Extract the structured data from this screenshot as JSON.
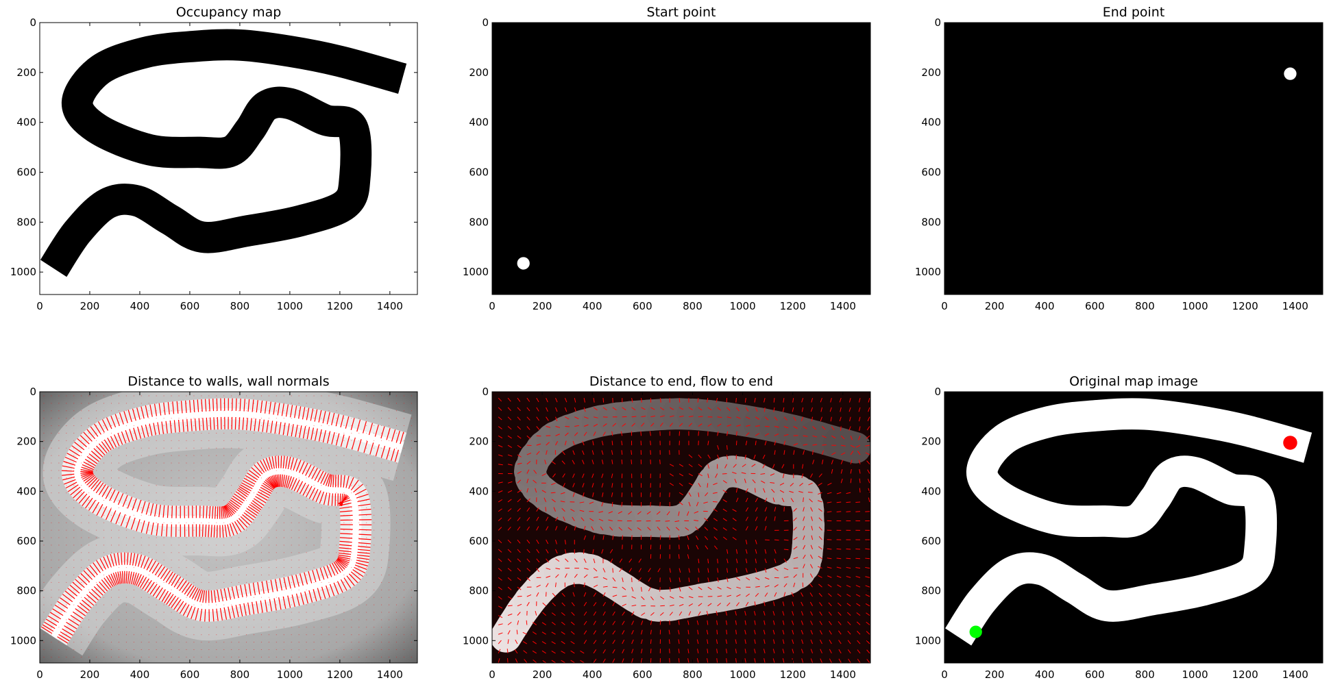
{
  "chart_data": [
    {
      "type": "heatmap",
      "title": "Occupancy map",
      "panel": "occupancy",
      "xlim": [
        0,
        1510
      ],
      "ylim": [
        1090,
        0
      ],
      "x_ticks": [
        0,
        200,
        400,
        600,
        800,
        1000,
        1200,
        1400
      ],
      "y_ticks": [
        0,
        200,
        400,
        600,
        800,
        1000
      ],
      "background": "#ffffff",
      "track_color": "#000000",
      "track_width": 125,
      "track_path": [
        [
          55,
          985
        ],
        [
          150,
          840
        ],
        [
          270,
          725
        ],
        [
          390,
          715
        ],
        [
          520,
          790
        ],
        [
          650,
          860
        ],
        [
          830,
          835
        ],
        [
          1040,
          795
        ],
        [
          1220,
          730
        ],
        [
          1260,
          620
        ],
        [
          1250,
          420
        ],
        [
          1140,
          390
        ],
        [
          1000,
          325
        ],
        [
          905,
          335
        ],
        [
          840,
          430
        ],
        [
          765,
          515
        ],
        [
          640,
          520
        ],
        [
          440,
          510
        ],
        [
          230,
          425
        ],
        [
          150,
          320
        ],
        [
          240,
          190
        ],
        [
          420,
          120
        ],
        [
          620,
          95
        ],
        [
          800,
          90
        ],
        [
          1000,
          115
        ],
        [
          1200,
          155
        ],
        [
          1450,
          225
        ]
      ]
    },
    {
      "type": "heatmap",
      "title": "Start point",
      "panel": "start",
      "xlim": [
        0,
        1510
      ],
      "ylim": [
        1090,
        0
      ],
      "x_ticks": [
        0,
        200,
        400,
        600,
        800,
        1000,
        1200,
        1400
      ],
      "y_ticks": [
        0,
        200,
        400,
        600,
        800,
        1000
      ],
      "background": "#000000",
      "point": {
        "x": 125,
        "y": 965,
        "radius": 25,
        "color": "#ffffff"
      }
    },
    {
      "type": "heatmap",
      "title": "End point",
      "panel": "end",
      "xlim": [
        0,
        1510
      ],
      "ylim": [
        1090,
        0
      ],
      "x_ticks": [
        0,
        200,
        400,
        600,
        800,
        1000,
        1200,
        1400
      ],
      "y_ticks": [
        0,
        200,
        400,
        600,
        800,
        1000
      ],
      "background": "#000000",
      "point": {
        "x": 1380,
        "y": 205,
        "radius": 25,
        "color": "#ffffff"
      }
    },
    {
      "type": "heatmap",
      "title": "Distance to walls, wall normals",
      "panel": "walls",
      "xlim": [
        0,
        1510
      ],
      "ylim": [
        1090,
        0
      ],
      "x_ticks": [
        0,
        200,
        400,
        600,
        800,
        1000,
        1200,
        1400
      ],
      "y_ticks": [
        0,
        200,
        400,
        600,
        800,
        1000
      ],
      "background": "#bdbdbd",
      "arrow_color": "#ff0000"
    },
    {
      "type": "heatmap",
      "title": "Distance to end, flow to end",
      "panel": "flow",
      "xlim": [
        0,
        1510
      ],
      "ylim": [
        1090,
        0
      ],
      "x_ticks": [
        0,
        200,
        400,
        600,
        800,
        1000,
        1200,
        1400
      ],
      "y_ticks": [
        0,
        200,
        400,
        600,
        800,
        1000
      ],
      "background": "#1a0505",
      "arrow_color": "#ff0000",
      "end": {
        "x": 1380,
        "y": 205
      }
    },
    {
      "type": "heatmap",
      "title": "Original map image",
      "panel": "original",
      "xlim": [
        0,
        1510
      ],
      "ylim": [
        1090,
        0
      ],
      "x_ticks": [
        0,
        200,
        400,
        600,
        800,
        1000,
        1200,
        1400
      ],
      "y_ticks": [
        0,
        200,
        400,
        600,
        800,
        1000
      ],
      "background": "#000000",
      "track_color": "#ffffff",
      "start": {
        "x": 125,
        "y": 965,
        "radius": 25,
        "color": "#00ff00"
      },
      "end": {
        "x": 1380,
        "y": 205,
        "radius": 28,
        "color": "#ff0000"
      }
    }
  ]
}
